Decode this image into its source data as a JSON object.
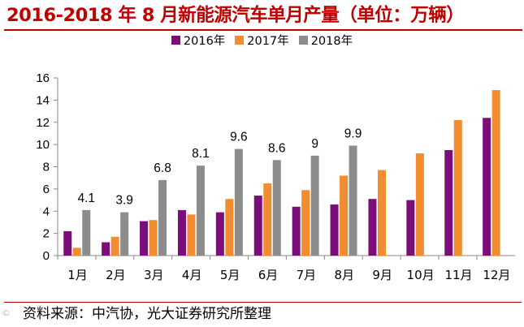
{
  "title": "2016-2018 年 8 月新能源汽车单月产量（单位：万辆）",
  "source": "资料来源：中汽协，光大证券研究所整理",
  "watermark": "©",
  "colors": {
    "title": "#c00000",
    "s2016": "#7b0e79",
    "s2017": "#f28c30",
    "s2018": "#8c8c8c"
  },
  "chart_data": {
    "type": "bar",
    "title": "2016-2018 年 8 月新能源汽车单月产量（单位：万辆）",
    "xlabel": "",
    "ylabel": "",
    "ylim": [
      0,
      16
    ],
    "yticks": [
      "0",
      "2",
      "4",
      "6",
      "8",
      "10",
      "12",
      "14",
      "16"
    ],
    "legend_position": "top-center",
    "categories": [
      "1月",
      "2月",
      "3月",
      "4月",
      "5月",
      "6月",
      "7月",
      "8月",
      "9月",
      "10月",
      "11月",
      "12月"
    ],
    "series": [
      {
        "name": "2016年",
        "values": [
          2.2,
          1.2,
          3.1,
          4.1,
          3.9,
          5.4,
          4.4,
          4.6,
          5.1,
          5.0,
          9.5,
          12.4
        ]
      },
      {
        "name": "2017年",
        "values": [
          0.7,
          1.7,
          3.2,
          3.7,
          5.1,
          6.5,
          5.9,
          7.2,
          7.7,
          9.2,
          12.2,
          14.9
        ]
      },
      {
        "name": "2018年",
        "values": [
          4.1,
          3.9,
          6.8,
          8.1,
          9.6,
          8.6,
          9.0,
          9.9,
          null,
          null,
          null,
          null
        ]
      }
    ],
    "data_labels": [
      "4.1",
      "3.9",
      "6.8",
      "8.1",
      "9.6",
      "8.6",
      "9",
      "9.9"
    ]
  }
}
